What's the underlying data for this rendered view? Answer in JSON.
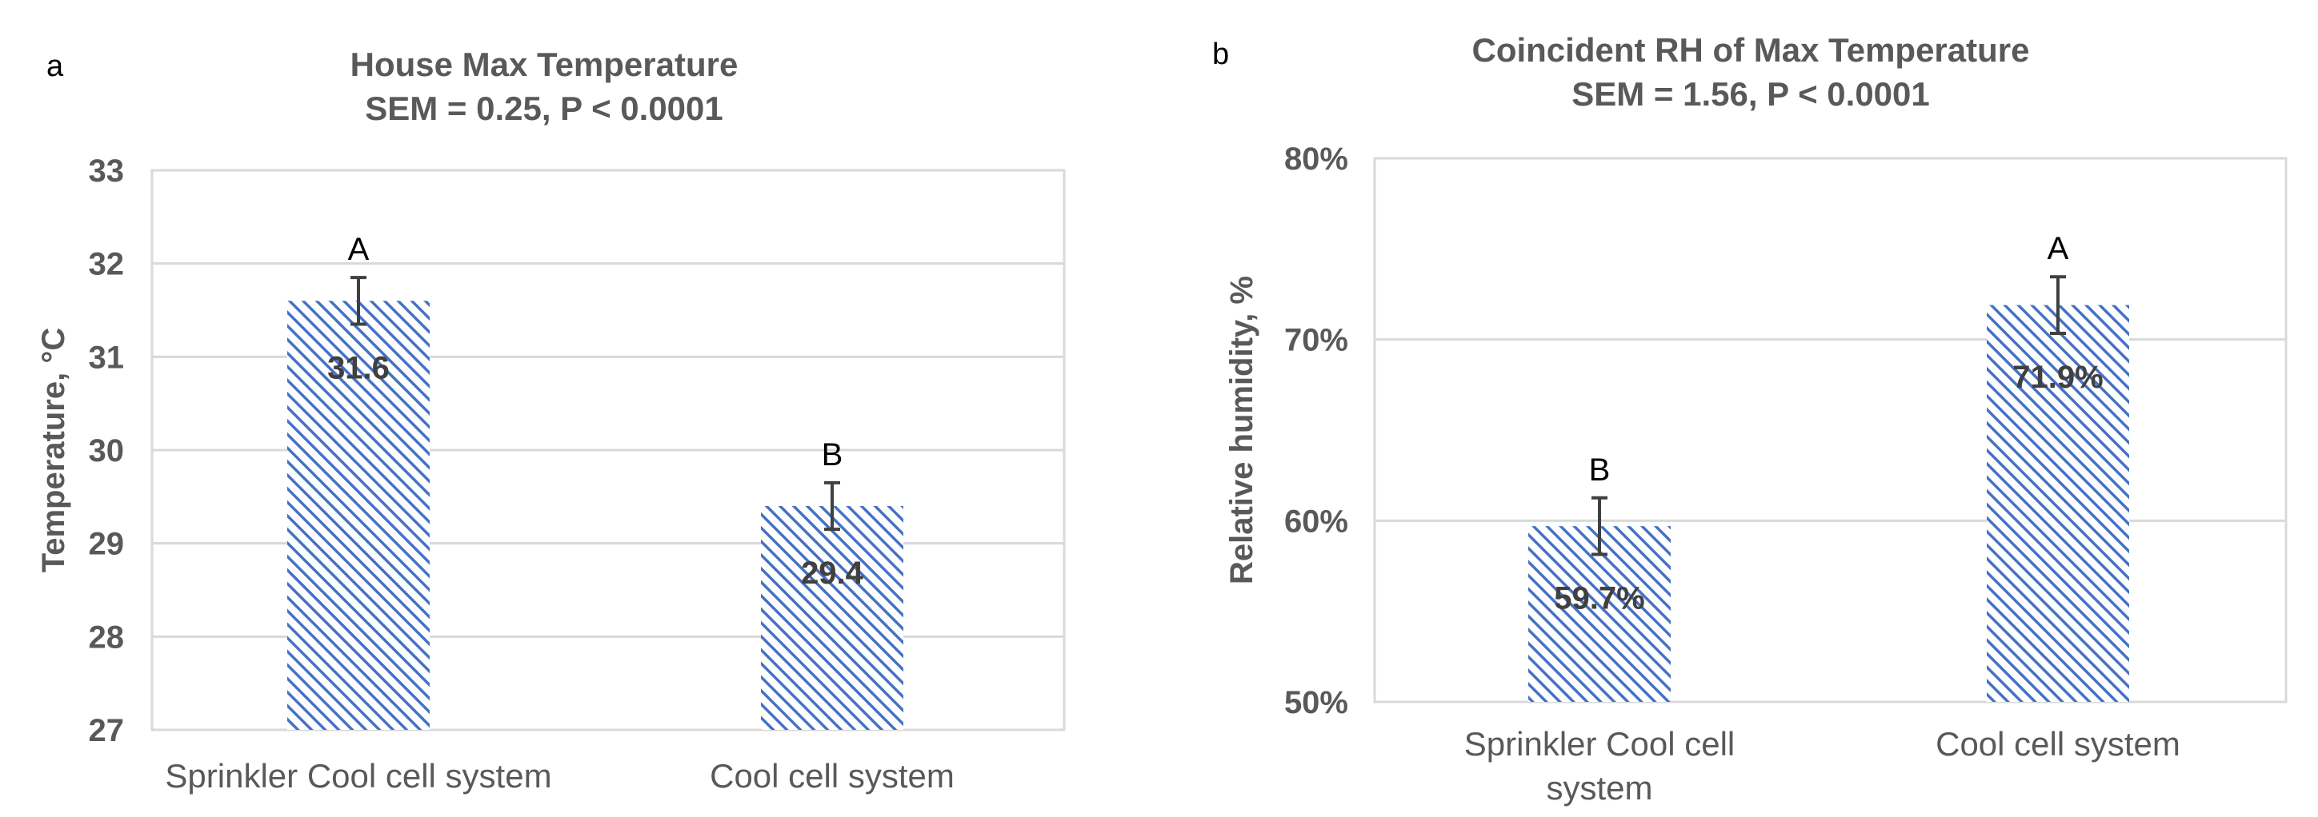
{
  "chart_data": [
    {
      "panel": "a",
      "type": "bar",
      "title": [
        "House Max Temperature",
        "SEM = 0.25, P < 0.0001"
      ],
      "ylabel": "Temperature, °C",
      "xlabel": "",
      "ylim": [
        27,
        33
      ],
      "yticks": [
        "27",
        "28",
        "29",
        "30",
        "31",
        "32",
        "33"
      ],
      "yvalues": [
        27,
        28,
        29,
        30,
        31,
        32,
        33
      ],
      "categories": [
        [
          "Sprinkler Cool cell system"
        ],
        [
          "Cool cell system"
        ]
      ],
      "values": [
        31.6,
        29.4
      ],
      "value_labels": [
        "31.6",
        "29.4"
      ],
      "error_bars": [
        0.25,
        0.25
      ],
      "significance_letters": [
        "A",
        "B"
      ],
      "grid": true,
      "bar_color": "#4472c4"
    },
    {
      "panel": "b",
      "type": "bar",
      "title": [
        "Coincident RH of Max Temperature",
        "SEM = 1.56, P < 0.0001"
      ],
      "ylabel": "Relative humidity, %",
      "xlabel": "",
      "ylim": [
        50,
        80
      ],
      "yticks": [
        "50%",
        "60%",
        "70%",
        "80%"
      ],
      "yvalues": [
        50,
        60,
        70,
        80
      ],
      "categories": [
        [
          "Sprinkler Cool cell",
          "system"
        ],
        [
          "Cool cell system"
        ]
      ],
      "values": [
        59.7,
        71.9
      ],
      "value_labels": [
        "59.7%",
        "71.9%"
      ],
      "error_bars": [
        1.56,
        1.56
      ],
      "significance_letters": [
        "B",
        "A"
      ],
      "grid": true,
      "bar_color": "#4472c4"
    }
  ]
}
